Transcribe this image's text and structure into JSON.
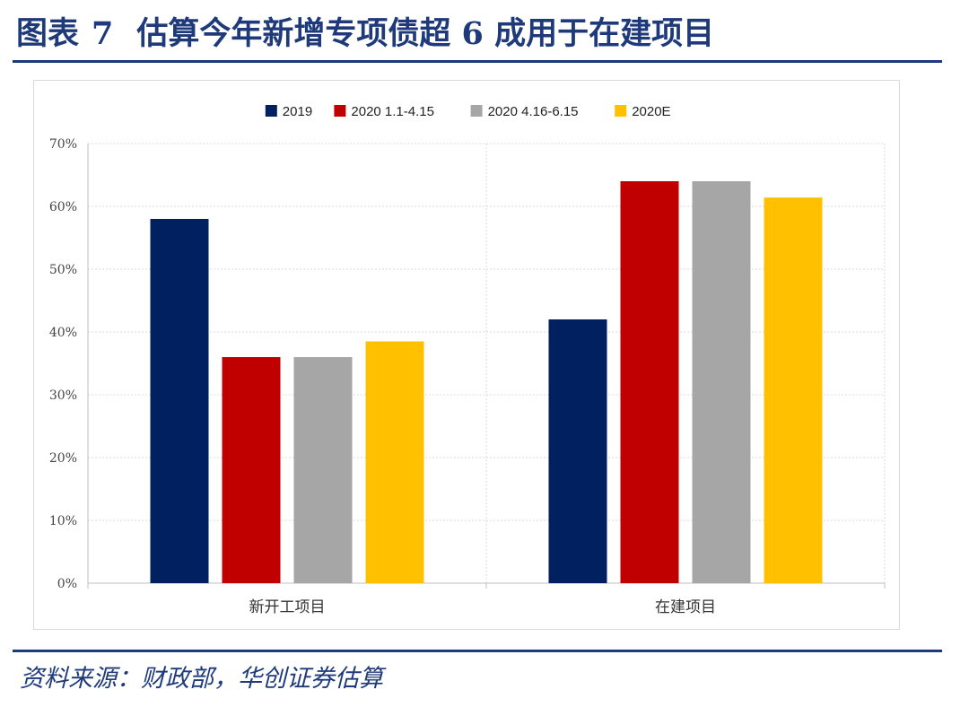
{
  "header": {
    "label": "图表",
    "number": "7",
    "title": "估算今年新增专项债超 6 成用于在建项目"
  },
  "footer": {
    "source": "资料来源：财政部，华创证券估算"
  },
  "colors": {
    "title": "#1f3a7a",
    "series": [
      "#002060",
      "#c00000",
      "#a6a6a6",
      "#ffc000"
    ]
  },
  "chart_data": {
    "type": "bar",
    "title": "",
    "xlabel": "",
    "ylabel": "",
    "categories": [
      "新开工项目",
      "在建项目"
    ],
    "series": [
      {
        "name": "2019",
        "values": [
          58,
          42
        ]
      },
      {
        "name": "2020 1.1-4.15",
        "values": [
          36,
          64
        ]
      },
      {
        "name": "2020 4.16-6.15",
        "values": [
          36,
          64
        ]
      },
      {
        "name": "2020E",
        "values": [
          38.5,
          61.4
        ]
      }
    ],
    "ylim": [
      0,
      70
    ],
    "yticks": [
      0,
      10,
      20,
      30,
      40,
      50,
      60,
      70
    ],
    "ytick_labels": [
      "0%",
      "10%",
      "20%",
      "30%",
      "40%",
      "50%",
      "60%",
      "70%"
    ],
    "grid": true,
    "legend_position": "top"
  }
}
